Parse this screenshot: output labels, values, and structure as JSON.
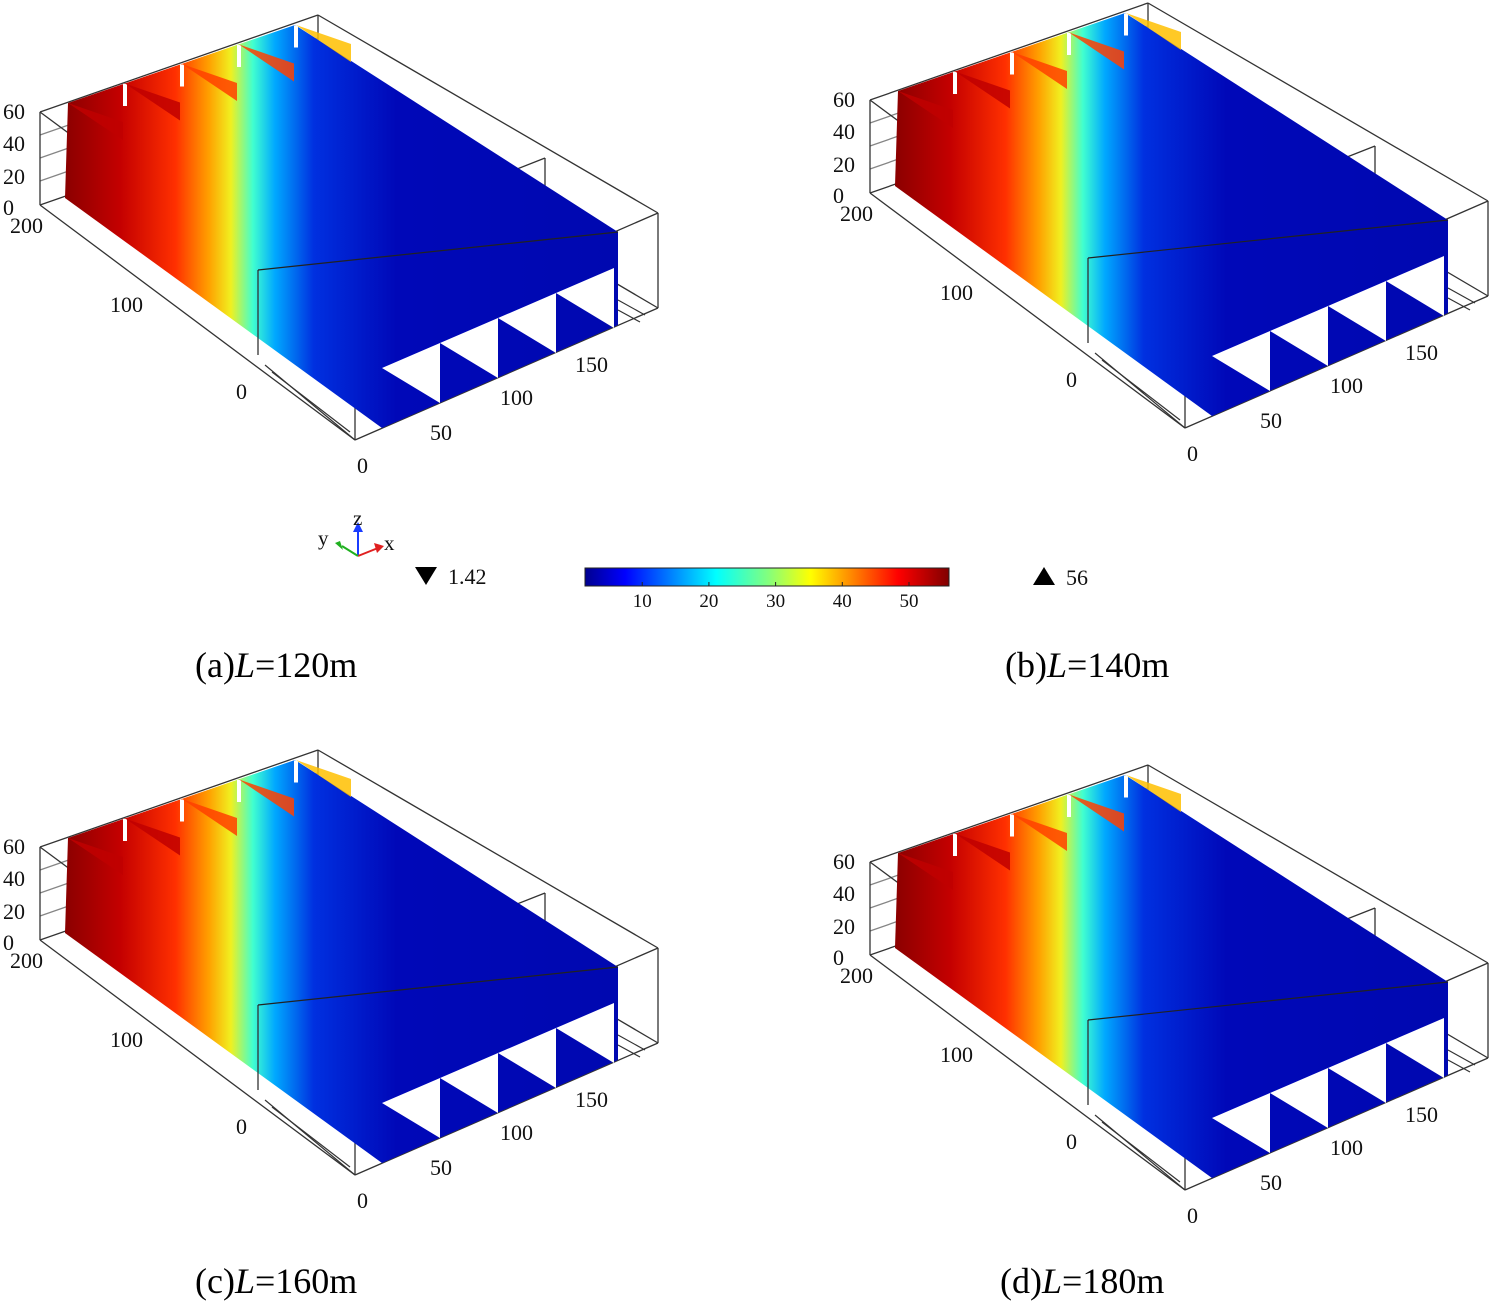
{
  "chart_data": {
    "type": "heatmap",
    "colorbar": {
      "min_marker": "1.42",
      "max_marker": "56",
      "range": [
        1.42,
        56
      ],
      "ticks": [
        "10",
        "20",
        "30",
        "40",
        "50"
      ],
      "colormap": "jet"
    },
    "axes_triad": {
      "x": "x",
      "y": "y",
      "z": "z"
    },
    "panels": [
      {
        "id": "a",
        "caption_prefix": "(a)",
        "caption_var": "L",
        "caption_rest": "=120m",
        "L": 120,
        "x_ticks": [
          "0",
          "50",
          "100",
          "150"
        ],
        "y_ticks": [
          "0",
          "100",
          "200"
        ],
        "z_ticks": [
          "0",
          "20",
          "40",
          "60"
        ],
        "slices": 5
      },
      {
        "id": "b",
        "caption_prefix": "(b)",
        "caption_var": "L",
        "caption_rest": "=140m",
        "L": 140,
        "x_ticks": [
          "0",
          "50",
          "100",
          "150"
        ],
        "y_ticks": [
          "0",
          "100",
          "200"
        ],
        "z_ticks": [
          "0",
          "20",
          "40",
          "60"
        ],
        "slices": 5
      },
      {
        "id": "c",
        "caption_prefix": "(c)",
        "caption_var": "L",
        "caption_rest": "=160m",
        "L": 160,
        "x_ticks": [
          "0",
          "50",
          "100",
          "150"
        ],
        "y_ticks": [
          "0",
          "100",
          "200"
        ],
        "z_ticks": [
          "0",
          "20",
          "40",
          "60"
        ],
        "slices": 5
      },
      {
        "id": "d",
        "caption_prefix": "(d)",
        "caption_var": "L",
        "caption_rest": "=180m",
        "L": 180,
        "x_ticks": [
          "0",
          "50",
          "100",
          "150"
        ],
        "y_ticks": [
          "0",
          "100",
          "200"
        ],
        "z_ticks": [
          "0",
          "20",
          "40",
          "60"
        ],
        "slices": 5
      }
    ]
  }
}
